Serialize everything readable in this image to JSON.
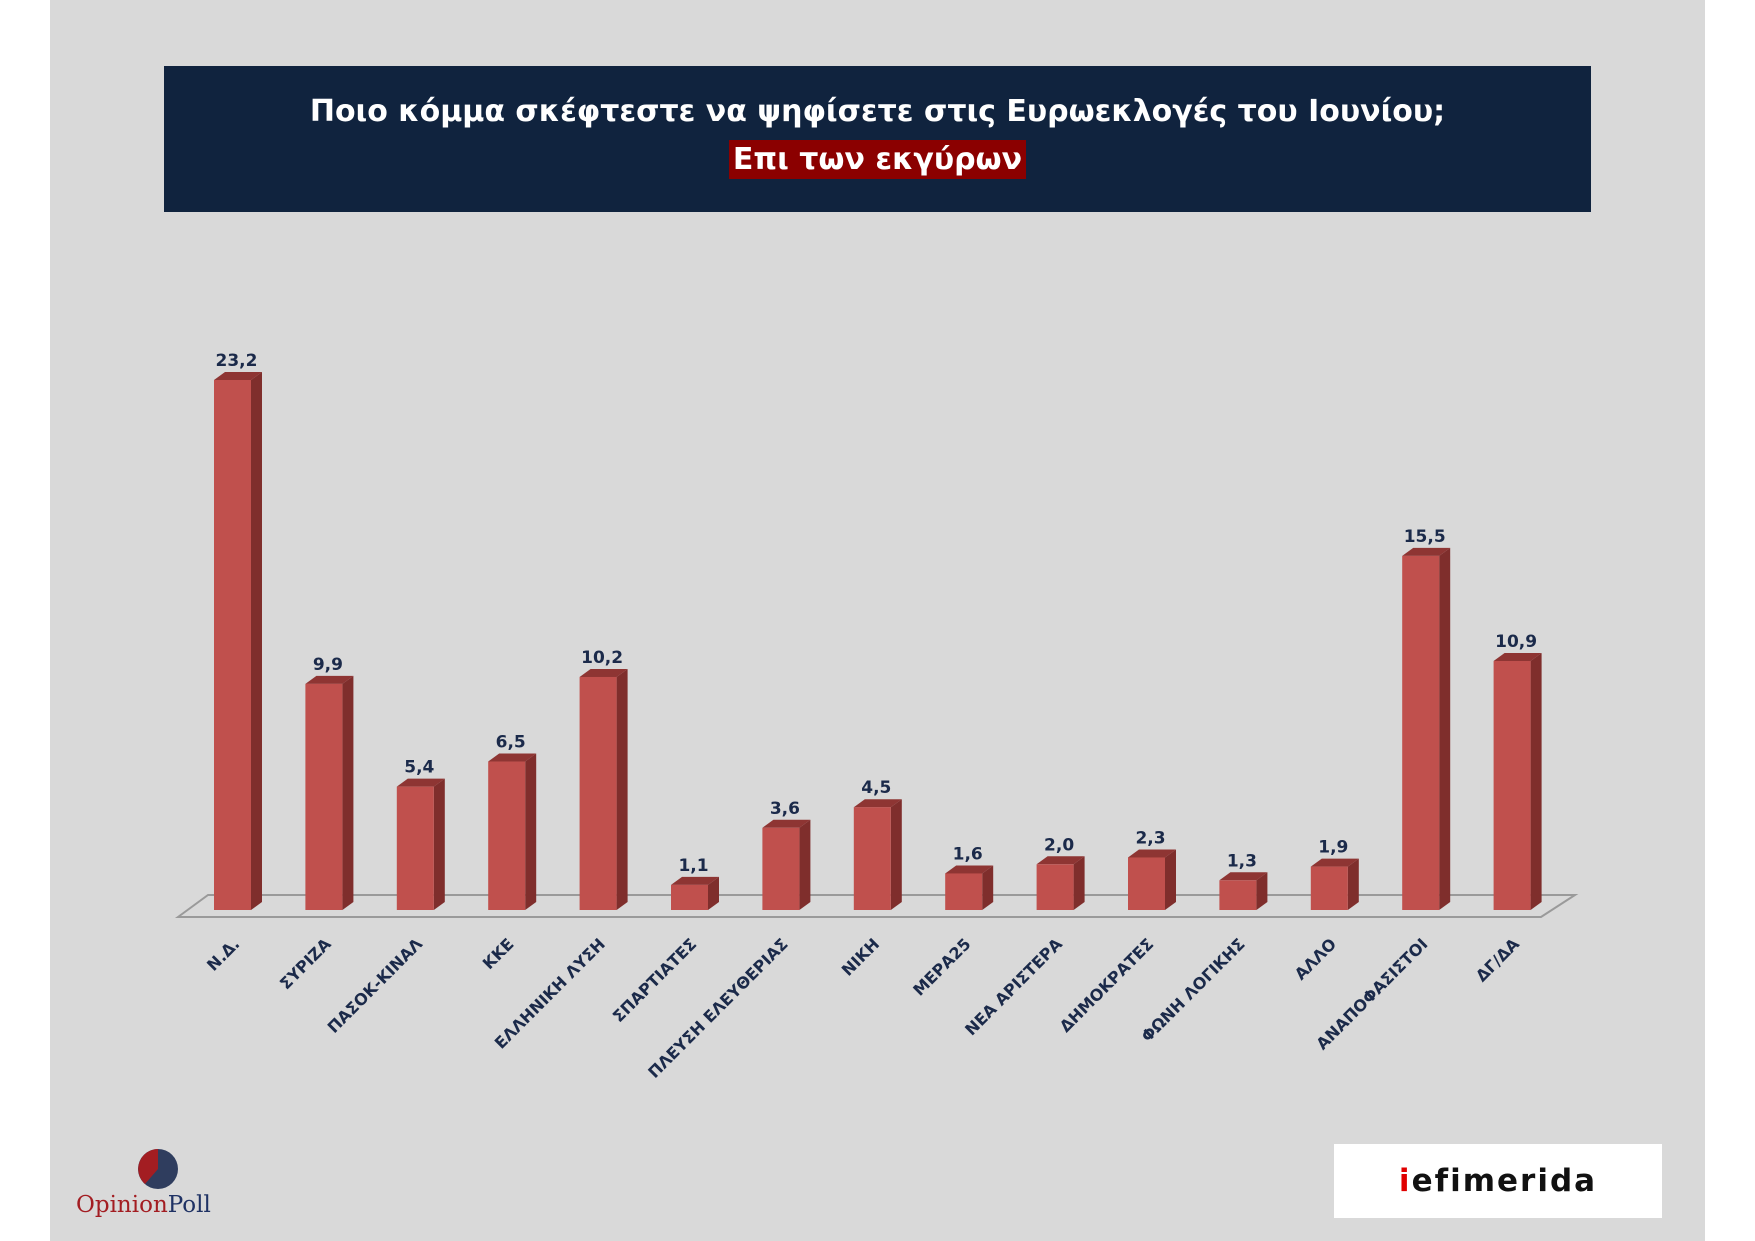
{
  "title": {
    "line1": "Ποιο κόμμα σκέφτεστε να ψηφίσετε στις Ευρωεκλογές του Ιουνίου;",
    "line2": "Επι των εκγύρων"
  },
  "colors": {
    "bar_front": "#c0504d",
    "bar_side": "#7f2e2c",
    "bar_top": "#8e3533",
    "title_bg": "#10233e",
    "highlight_bg": "#8b0000",
    "slide_bg": "#d9d9d9"
  },
  "chart_data": {
    "type": "bar",
    "categories": [
      "Ν.Δ.",
      "ΣΥΡΙΖΑ",
      "ΠΑΣΟΚ-ΚΙΝΑΛ",
      "ΚΚΕ",
      "ΕΛΛΗΝΙΚΗ ΛΥΣΗ",
      "ΣΠΑΡΤΙΑΤΕΣ",
      "ΠΛΕΥΣΗ ΕΛΕΥΘΕΡΙΑΣ",
      "ΝΙΚΗ",
      "ΜΕΡΑ25",
      "ΝΕΑ ΑΡΙΣΤΕΡΑ",
      "ΔΗΜΟΚΡΑΤΕΣ",
      "ΦΩΝΗ ΛΟΓΙΚΗΣ",
      "ΑΛΛΟ",
      "ΑΝΑΠΟΦΑΣΙΣΤΟΙ",
      "ΔΓ/ΔΑ"
    ],
    "values": [
      23.2,
      9.9,
      5.4,
      6.5,
      10.2,
      1.1,
      3.6,
      4.5,
      1.6,
      2.0,
      2.3,
      1.3,
      1.9,
      15.5,
      10.9
    ],
    "value_labels": [
      "23,2",
      "9,9",
      "5,4",
      "6,5",
      "10,2",
      "1,1",
      "3,6",
      "4,5",
      "1,6",
      "2,0",
      "2,3",
      "1,3",
      "1,9",
      "15,5",
      "10,9"
    ],
    "title": "Ποιο κόμμα σκέφτεστε να ψηφίσετε στις Ευρωεκλογές του Ιουνίου;",
    "xlabel": "",
    "ylabel": "",
    "ylim": [
      0,
      23.2
    ],
    "grid": false,
    "legend": "none"
  },
  "logos": {
    "opinionpoll": {
      "part1": "Opinion",
      "part2": "Poll"
    },
    "iefimerida": {
      "part1": "i",
      "part2": "efimerida"
    }
  }
}
